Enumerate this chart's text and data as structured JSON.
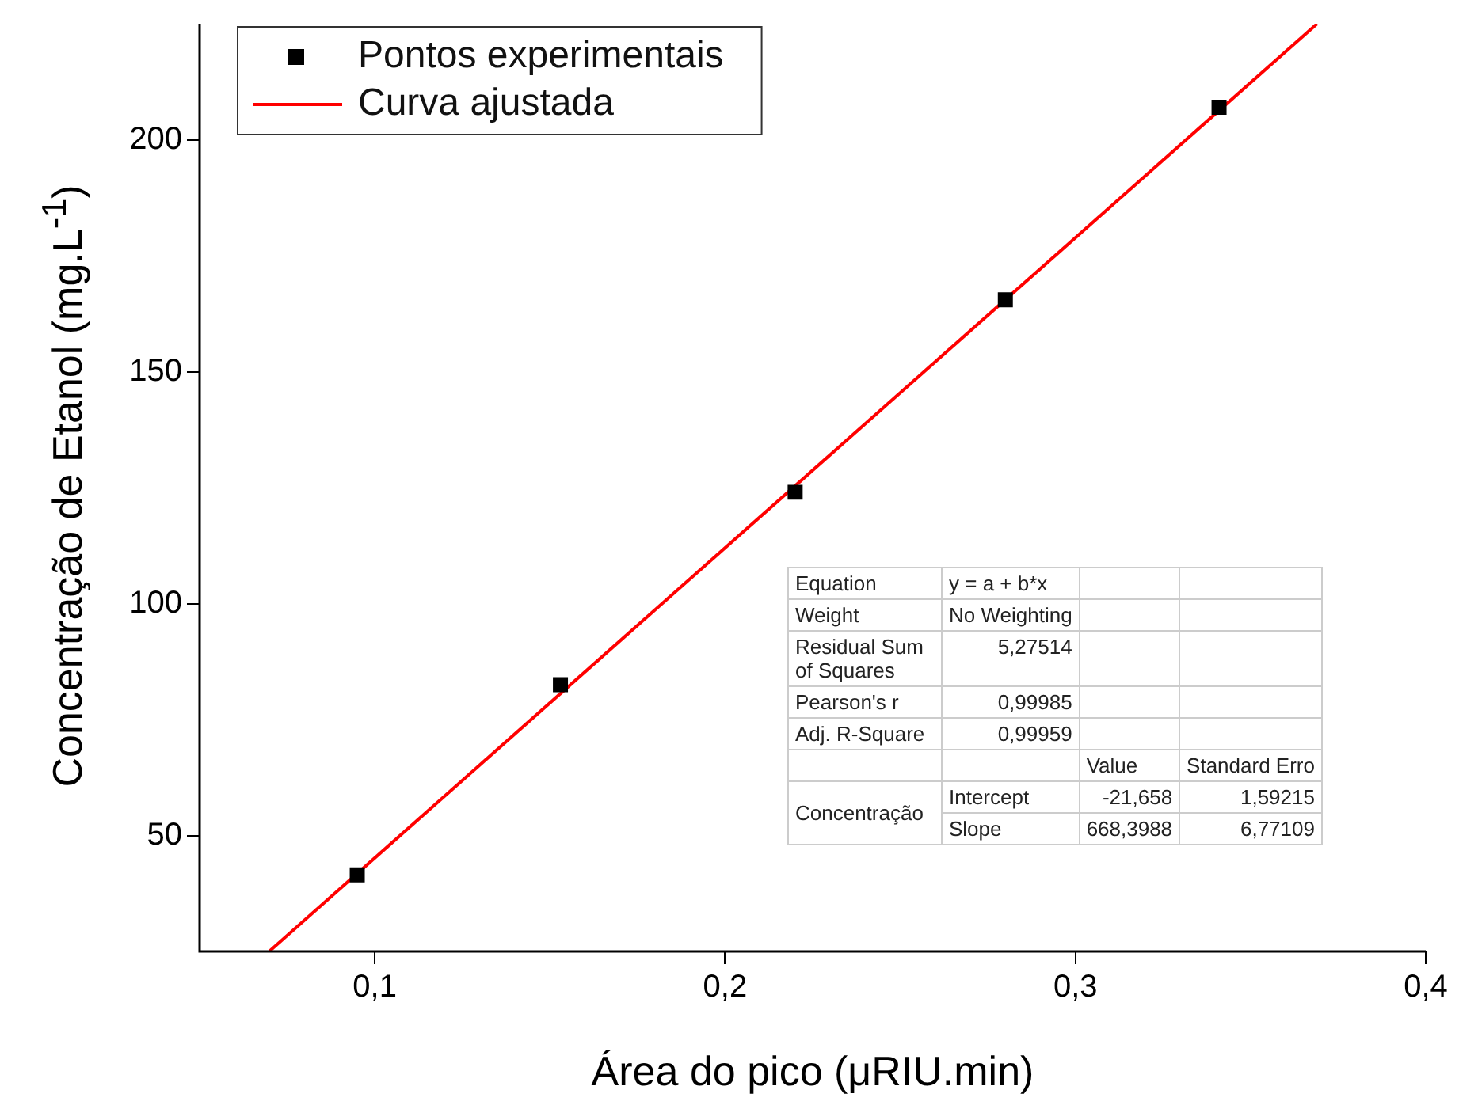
{
  "chart_data": {
    "type": "scatter",
    "xlabel": "Área do pico (μRIU.min)",
    "ylabel": "Concentração de Etanol (mg.L$^{-1}$)",
    "xlim": [
      0.05,
      0.4
    ],
    "xticks": [
      {
        "value": 0.1,
        "label": "0,1"
      },
      {
        "value": 0.2,
        "label": "0,2"
      },
      {
        "value": 0.3,
        "label": "0,3"
      },
      {
        "value": 0.4,
        "label": "0,4"
      }
    ],
    "ylim": [
      25,
      225
    ],
    "yticks": [
      50,
      100,
      150,
      200
    ],
    "legend": "top left",
    "series": [
      {
        "name": "Pontos experimentais",
        "type": "scatter",
        "color": "#000000",
        "marker": "square",
        "x": [
          0.095,
          0.153,
          0.22,
          0.28,
          0.341
        ],
        "values": [
          41.5,
          82.5,
          124,
          165.5,
          207
        ]
      },
      {
        "name": "Curva ajustada",
        "type": "line",
        "color": "#ff0000",
        "marker": "none",
        "x": [
          0.07,
          0.369
        ],
        "values": [
          25.1,
          225.0
        ]
      }
    ],
    "annotations": [
      "Equation",
      "y = a + b*x",
      "Weight",
      "No Weighting",
      "Residual Sum of Squares",
      "5,27514",
      "Pearson's r",
      "0,99985",
      "Adj. R-Square",
      "0,99959",
      "Value",
      "Standard Erro",
      "Concentração",
      "Intercept",
      "-21,658",
      "1,59215",
      "Slope",
      "668,3988",
      "6,77109"
    ]
  }
}
